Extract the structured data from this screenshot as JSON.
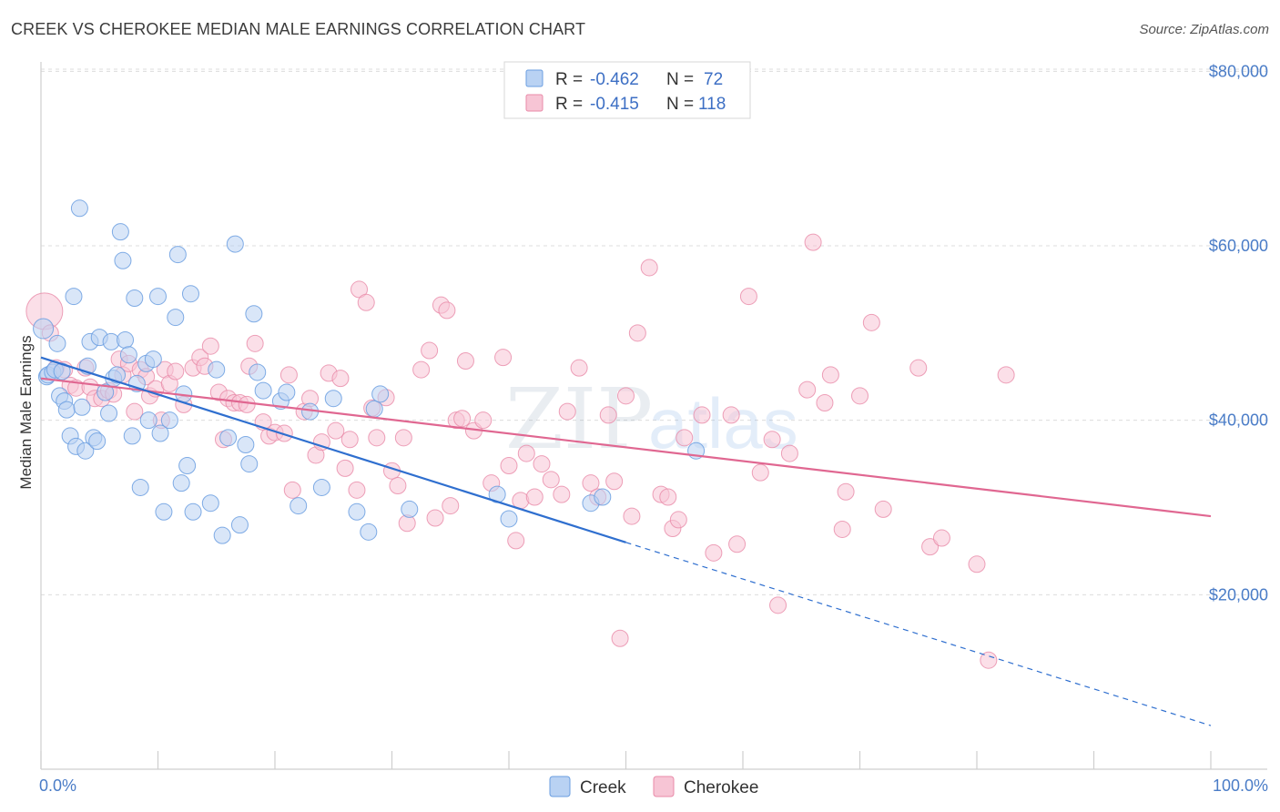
{
  "header": {
    "title": "CREEK VS CHEROKEE MEDIAN MALE EARNINGS CORRELATION CHART",
    "source": "Source: ZipAtlas.com"
  },
  "watermark": {
    "zip": "ZIP",
    "atlas": "atlas"
  },
  "colors": {
    "creek": "#6a9ee0",
    "creek_fill": "#b9d2f3",
    "creek_line": "#2f6fcf",
    "cherokee": "#e88aa8",
    "cherokee_fill": "#f7c5d5",
    "cherokee_line": "#e06791",
    "grid": "#dcdcdc",
    "axis_text": "#4a7cc7"
  },
  "legend": {
    "rows": [
      {
        "r_label": "R =",
        "r_value": "-0.462",
        "n_label": "N =",
        "n_value": "72"
      },
      {
        "r_label": "R =",
        "r_value": "-0.415",
        "n_label": "N =",
        "n_value": "118"
      }
    ],
    "bottom": [
      "Creek",
      "Cherokee"
    ]
  },
  "chart_data": {
    "type": "scatter",
    "title": "CREEK VS CHEROKEE MEDIAN MALE EARNINGS CORRELATION CHART",
    "xlabel": "",
    "ylabel": "Median Male Earnings",
    "xlim": [
      0,
      100
    ],
    "ylim": [
      0,
      82000
    ],
    "x_tick_labels": [
      "0.0%",
      "100.0%"
    ],
    "y_ticks": [
      20000,
      40000,
      60000,
      80000
    ],
    "y_tick_labels": [
      "$20,000",
      "$40,000",
      "$60,000",
      "$80,000"
    ],
    "grid": true,
    "legend_position": "top-center",
    "series": [
      {
        "name": "Creek",
        "trend": {
          "x0": 0,
          "y0": 47200,
          "x1": 50,
          "y1": 26000,
          "dash_to_x": 100,
          "dash_to_y": 5000
        },
        "points": [
          [
            0.2,
            50.5
          ],
          [
            0.5,
            45
          ],
          [
            0.6,
            45.2
          ],
          [
            1,
            45.5
          ],
          [
            1.2,
            45.8
          ],
          [
            1.4,
            48.8
          ],
          [
            1.6,
            42.8
          ],
          [
            1.8,
            45.6
          ],
          [
            2,
            42.2
          ],
          [
            2.2,
            41.2
          ],
          [
            2.5,
            38.2
          ],
          [
            2.8,
            54.2
          ],
          [
            3,
            37
          ],
          [
            3.3,
            64.3
          ],
          [
            3.5,
            41.5
          ],
          [
            3.8,
            36.5
          ],
          [
            4,
            46.2
          ],
          [
            4.2,
            49
          ],
          [
            4.5,
            38
          ],
          [
            4.8,
            37.6
          ],
          [
            5,
            49.5
          ],
          [
            5.5,
            43.2
          ],
          [
            5.8,
            40.8
          ],
          [
            6,
            49
          ],
          [
            6.2,
            44.8
          ],
          [
            6.5,
            45.2
          ],
          [
            6.8,
            61.6
          ],
          [
            7,
            58.3
          ],
          [
            7.2,
            49.2
          ],
          [
            7.5,
            47.5
          ],
          [
            7.8,
            38.2
          ],
          [
            8,
            54
          ],
          [
            8.2,
            44.2
          ],
          [
            8.5,
            32.3
          ],
          [
            9,
            46.5
          ],
          [
            9.2,
            40
          ],
          [
            9.6,
            47
          ],
          [
            10,
            54.2
          ],
          [
            10.2,
            38.5
          ],
          [
            10.5,
            29.5
          ],
          [
            11,
            40
          ],
          [
            11.5,
            51.8
          ],
          [
            11.7,
            59
          ],
          [
            12,
            32.8
          ],
          [
            12.2,
            43
          ],
          [
            12.5,
            34.8
          ],
          [
            12.8,
            54.5
          ],
          [
            13,
            29.5
          ],
          [
            14.5,
            30.5
          ],
          [
            15,
            45.8
          ],
          [
            15.5,
            26.8
          ],
          [
            16,
            38
          ],
          [
            16.6,
            60.2
          ],
          [
            17,
            28
          ],
          [
            17.5,
            37.2
          ],
          [
            17.8,
            35
          ],
          [
            18.2,
            52.2
          ],
          [
            18.5,
            45.5
          ],
          [
            19,
            43.4
          ],
          [
            20.5,
            42.2
          ],
          [
            21,
            43.2
          ],
          [
            22,
            30.2
          ],
          [
            23,
            41
          ],
          [
            24,
            32.3
          ],
          [
            25,
            42.5
          ],
          [
            27,
            29.5
          ],
          [
            28,
            27.2
          ],
          [
            28.5,
            41.3
          ],
          [
            29,
            43
          ],
          [
            31.5,
            29.8
          ],
          [
            39,
            31.5
          ],
          [
            40,
            28.7
          ],
          [
            47,
            30.5
          ],
          [
            48,
            31.2
          ],
          [
            56,
            36.5
          ]
        ]
      },
      {
        "name": "Cherokee",
        "trend": {
          "x0": 0,
          "y0": 44800,
          "x1": 100,
          "y1": 29000
        },
        "points": [
          [
            0.3,
            52.5
          ],
          [
            0.8,
            50
          ],
          [
            1.3,
            46
          ],
          [
            2,
            45.8
          ],
          [
            2.5,
            44
          ],
          [
            3,
            43.7
          ],
          [
            3.8,
            46
          ],
          [
            4.2,
            43.8
          ],
          [
            4.6,
            42.5
          ],
          [
            5.2,
            42.5
          ],
          [
            5.8,
            43.4
          ],
          [
            6.2,
            43
          ],
          [
            6.7,
            47
          ],
          [
            7,
            45.2
          ],
          [
            7.5,
            46.5
          ],
          [
            8,
            41
          ],
          [
            8.5,
            45.8
          ],
          [
            9,
            45
          ],
          [
            9.3,
            42.8
          ],
          [
            9.8,
            43.6
          ],
          [
            10.3,
            40
          ],
          [
            10.6,
            45.8
          ],
          [
            11,
            44.2
          ],
          [
            11.5,
            45.6
          ],
          [
            12.2,
            41.8
          ],
          [
            13,
            46
          ],
          [
            13.6,
            47.2
          ],
          [
            14,
            46.2
          ],
          [
            14.5,
            48.5
          ],
          [
            15.2,
            43.2
          ],
          [
            15.6,
            37.8
          ],
          [
            16,
            42.5
          ],
          [
            16.5,
            42
          ],
          [
            17,
            42
          ],
          [
            17.6,
            41.8
          ],
          [
            17.8,
            46.2
          ],
          [
            18.3,
            48.8
          ],
          [
            19,
            39.8
          ],
          [
            19.5,
            38.2
          ],
          [
            20,
            38.6
          ],
          [
            20.8,
            38.5
          ],
          [
            21.2,
            45.2
          ],
          [
            21.5,
            32
          ],
          [
            22.5,
            41
          ],
          [
            23,
            42.5
          ],
          [
            23.5,
            36
          ],
          [
            24,
            37.5
          ],
          [
            24.6,
            45.4
          ],
          [
            25.2,
            38.8
          ],
          [
            25.6,
            44.8
          ],
          [
            26,
            34.5
          ],
          [
            26.4,
            37.8
          ],
          [
            27,
            32
          ],
          [
            27.2,
            55
          ],
          [
            27.8,
            53.5
          ],
          [
            28.3,
            41.4
          ],
          [
            28.7,
            38
          ],
          [
            29.5,
            42.6
          ],
          [
            30,
            34.2
          ],
          [
            30.5,
            32.5
          ],
          [
            31,
            38
          ],
          [
            31.3,
            28.2
          ],
          [
            32.5,
            45.8
          ],
          [
            33.2,
            48
          ],
          [
            33.7,
            28.8
          ],
          [
            34.2,
            53.2
          ],
          [
            34.7,
            52.6
          ],
          [
            35,
            30.2
          ],
          [
            35.5,
            40
          ],
          [
            36,
            40.2
          ],
          [
            36.3,
            46.8
          ],
          [
            37,
            38.8
          ],
          [
            37.8,
            40
          ],
          [
            38.5,
            32.8
          ],
          [
            39.5,
            47.2
          ],
          [
            40,
            34.8
          ],
          [
            40.6,
            26.2
          ],
          [
            41,
            30.8
          ],
          [
            41.5,
            36.2
          ],
          [
            42.2,
            31.2
          ],
          [
            42.8,
            35
          ],
          [
            43.6,
            33.2
          ],
          [
            44.5,
            31.5
          ],
          [
            45,
            41
          ],
          [
            46,
            46
          ],
          [
            47,
            32.8
          ],
          [
            47.6,
            31.2
          ],
          [
            48.5,
            40.6
          ],
          [
            49,
            33
          ],
          [
            49.5,
            15
          ],
          [
            50,
            42.8
          ],
          [
            50.5,
            29
          ],
          [
            51,
            50
          ],
          [
            52,
            57.5
          ],
          [
            53,
            31.5
          ],
          [
            53.6,
            31.2
          ],
          [
            54,
            27.6
          ],
          [
            54.5,
            28.6
          ],
          [
            55,
            38
          ],
          [
            56.5,
            40.6
          ],
          [
            57.5,
            24.8
          ],
          [
            59,
            40.6
          ],
          [
            59.5,
            25.8
          ],
          [
            60.5,
            54.2
          ],
          [
            61.5,
            34
          ],
          [
            62.5,
            37.8
          ],
          [
            63,
            18.8
          ],
          [
            64,
            36.2
          ],
          [
            65.5,
            43.5
          ],
          [
            66,
            60.4
          ],
          [
            67,
            42
          ],
          [
            67.5,
            45.2
          ],
          [
            68.5,
            27.5
          ],
          [
            68.8,
            31.8
          ],
          [
            70,
            42.8
          ],
          [
            71,
            51.2
          ],
          [
            72,
            29.8
          ],
          [
            75,
            46
          ],
          [
            76,
            25.5
          ],
          [
            77,
            26.5
          ],
          [
            80,
            23.5
          ],
          [
            81,
            12.5
          ],
          [
            82.5,
            45.2
          ]
        ]
      }
    ]
  }
}
